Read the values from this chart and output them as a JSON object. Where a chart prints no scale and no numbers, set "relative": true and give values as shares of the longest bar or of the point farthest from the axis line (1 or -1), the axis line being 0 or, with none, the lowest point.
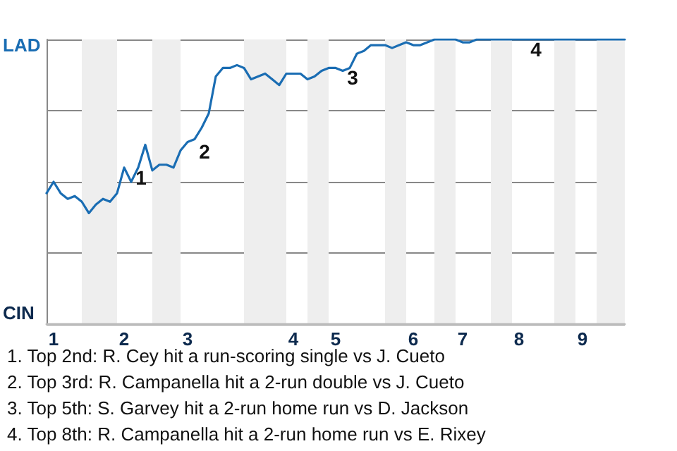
{
  "chart_data": {
    "type": "line",
    "categories": [
      null,
      "1",
      null,
      null,
      null,
      null,
      null,
      null,
      null,
      null,
      null,
      "2",
      null,
      null,
      null,
      null,
      null,
      null,
      null,
      null,
      "3",
      null,
      null,
      null,
      null,
      null,
      null,
      null,
      null,
      null,
      null,
      null,
      null,
      null,
      null,
      "4",
      null,
      null,
      null,
      null,
      null,
      "5",
      null,
      null,
      null,
      null,
      null,
      null,
      null,
      null,
      null,
      null,
      "6",
      null,
      null,
      null,
      null,
      null,
      null,
      "7",
      null,
      null,
      null,
      null,
      null,
      null,
      null,
      "8",
      null,
      null,
      null,
      null,
      null,
      null,
      null,
      null,
      "9",
      null,
      null,
      null,
      null,
      null,
      null
    ],
    "series": [
      {
        "color": "#1a6db3",
        "values": [
          0.46,
          0.5,
          0.46,
          0.44,
          0.45,
          0.43,
          0.39,
          0.42,
          0.44,
          0.43,
          0.46,
          0.55,
          0.5,
          0.55,
          0.63,
          0.54,
          0.56,
          0.56,
          0.55,
          0.61,
          0.64,
          0.65,
          0.69,
          0.74,
          0.87,
          0.9,
          0.9,
          0.91,
          0.9,
          0.86,
          0.87,
          0.88,
          0.86,
          0.84,
          0.88,
          0.88,
          0.88,
          0.86,
          0.87,
          0.89,
          0.9,
          0.9,
          0.89,
          0.9,
          0.95,
          0.96,
          0.98,
          0.98,
          0.98,
          0.97,
          0.98,
          0.99,
          0.98,
          0.98,
          0.99,
          1,
          1,
          1,
          1,
          0.99,
          0.99,
          1,
          1,
          1,
          1,
          1,
          1,
          1,
          1,
          1,
          1,
          1,
          1,
          1,
          1,
          1,
          1,
          1,
          1,
          1,
          1,
          1,
          1
        ]
      }
    ],
    "relative": true,
    "grid": "y",
    "annotations": [
      "LAD",
      "CIN",
      {
        "text": "1",
        "x": "2",
        "y": 0.55
      },
      {
        "text": "2",
        "x": "3",
        "y": 0.64
      },
      {
        "text": "3",
        "x": "5",
        "y": 0.9
      },
      {
        "text": "4",
        "x": "8",
        "y": 1
      },
      "1. Top 2nd: R. Cey hit a run-scoring single vs J. Cueto",
      "2. Top 3rd: R. Campanella hit a 2-run double vs J. Cueto",
      "3. Top 5th: S. Garvey hit a 2-run home run vs D. Jackson",
      "4. Top 8th: R. Campanella hit a 2-run home run vs E. Rixey"
    ],
    "marker": "none"
  }
}
